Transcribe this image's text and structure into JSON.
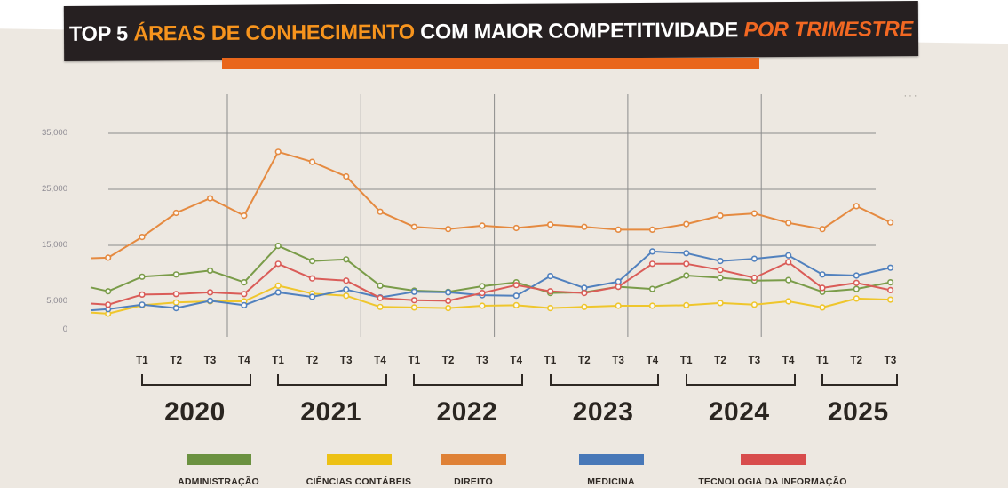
{
  "header": {
    "seg1": "TOP 5 ",
    "seg2": "ÁREAS DE CONHECIMENTO",
    "seg3": " COM MAIOR COMPETITIVIDADE ",
    "seg4": "POR TRIMESTRE",
    "accent_color": "#F7941D",
    "trimestre_color": "#F26822",
    "banner_bg": "#262021",
    "underline_color": "#E9661B"
  },
  "menu": {
    "dots": "···"
  },
  "background_color": "#EDE8E1",
  "chart_data": {
    "type": "line",
    "title": "TOP 5 ÁREAS DE CONHECIMENTO COM MAIOR COMPETITIVIDADE POR TRIMESTRE",
    "grid": true,
    "legend_position": "bottom",
    "y_axis": {
      "min": 0,
      "max": 35000,
      "ticks": [
        {
          "value": 0,
          "label": "0",
          "gridline": false
        },
        {
          "value": 5000,
          "label": "5,000",
          "gridline": false
        },
        {
          "value": 15000,
          "label": "15,000",
          "gridline": true
        },
        {
          "value": 25000,
          "label": "25,000",
          "gridline": true
        },
        {
          "value": 35000,
          "label": "35,000",
          "gridline": true
        }
      ]
    },
    "x_groups": [
      {
        "year": "2020",
        "quarters": [
          "T1",
          "T2",
          "T3",
          "T4"
        ]
      },
      {
        "year": "2021",
        "quarters": [
          "T1",
          "T2",
          "T3",
          "T4"
        ]
      },
      {
        "year": "2022",
        "quarters": [
          "T1",
          "T2",
          "T3",
          "T4"
        ]
      },
      {
        "year": "2023",
        "quarters": [
          "T1",
          "T2",
          "T3",
          "T4"
        ]
      },
      {
        "year": "2024",
        "quarters": [
          "T1",
          "T2",
          "T3",
          "T4"
        ]
      },
      {
        "year": "2025",
        "quarters": [
          "T1",
          "T2",
          "T3"
        ]
      }
    ],
    "series": [
      {
        "name": "ADMINISTRAÇÃO",
        "color": "#7A9C49",
        "legend_color": "#6B9140",
        "pre_values": [
          7500,
          6800
        ],
        "values": [
          9400,
          9800,
          10500,
          8400,
          14900,
          12200,
          12500,
          7800,
          6900,
          6700,
          7700,
          8400,
          6500,
          6600,
          7600,
          7200,
          9600,
          9200,
          8700,
          8800,
          6700,
          7200,
          8400
        ]
      },
      {
        "name": "CIÊNCIAS CONTÁBEIS",
        "color": "#EFC62C",
        "legend_color": "#EDC114",
        "pre_values": [
          3000,
          2800
        ],
        "values": [
          4300,
          4800,
          5000,
          5000,
          7800,
          6400,
          6000,
          4000,
          3900,
          3800,
          4200,
          4300,
          3800,
          4000,
          4200,
          4200,
          4300,
          4700,
          4400,
          5000,
          3900,
          5500,
          5300
        ]
      },
      {
        "name": "DIREITO",
        "color": "#E58A40",
        "legend_color": "#DF8136",
        "pre_values": [
          12700,
          12800
        ],
        "values": [
          16500,
          20800,
          23400,
          20300,
          31700,
          29900,
          27300,
          21000,
          18300,
          17900,
          18500,
          18100,
          18700,
          18300,
          17800,
          17800,
          18800,
          20300,
          20700,
          19000,
          17900,
          22000,
          19100
        ]
      },
      {
        "name": "MEDICINA",
        "color": "#5181BE",
        "legend_color": "#4878B8",
        "pre_values": [
          3400,
          3600
        ],
        "values": [
          4400,
          3800,
          5100,
          4300,
          6600,
          5800,
          7100,
          5700,
          6700,
          6600,
          6100,
          6000,
          9500,
          7400,
          8500,
          13900,
          13600,
          12200,
          12600,
          13200,
          9800,
          9600,
          11000
        ]
      },
      {
        "name": "TECNOLOGIA DA INFORMAÇÃO",
        "color": "#DA5C58",
        "legend_color": "#D84C4C",
        "pre_values": [
          4600,
          4400
        ],
        "values": [
          6200,
          6300,
          6600,
          6300,
          11700,
          9100,
          8700,
          5600,
          5200,
          5100,
          6500,
          7900,
          6800,
          6500,
          7600,
          11700,
          11700,
          10600,
          9200,
          12000,
          7400,
          8300,
          7000
        ]
      }
    ]
  }
}
